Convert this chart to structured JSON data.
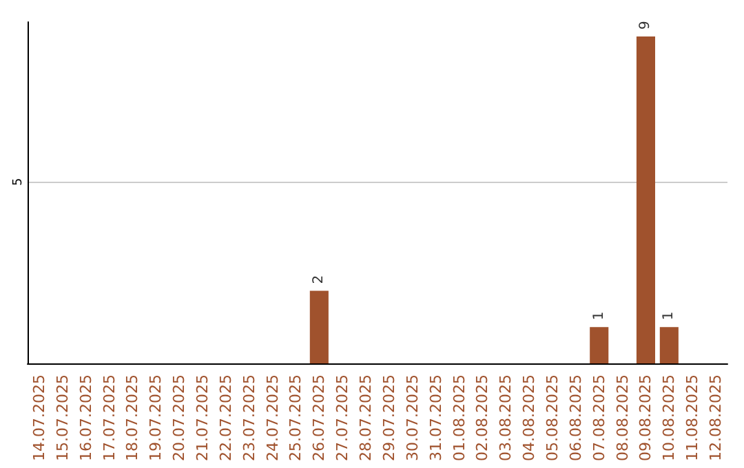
{
  "chart_data": {
    "type": "bar",
    "categories": [
      "14.07.2025",
      "15.07.2025",
      "16.07.2025",
      "17.07.2025",
      "18.07.2025",
      "19.07.2025",
      "20.07.2025",
      "21.07.2025",
      "22.07.2025",
      "23.07.2025",
      "24.07.2025",
      "25.07.2025",
      "26.07.2025",
      "27.07.2025",
      "28.07.2025",
      "29.07.2025",
      "30.07.2025",
      "31.07.2025",
      "01.08.2025",
      "02.08.2025",
      "03.08.2025",
      "04.08.2025",
      "05.08.2025",
      "06.08.2025",
      "07.08.2025",
      "08.08.2025",
      "09.08.2025",
      "10.08.2025",
      "11.08.2025",
      "12.08.2025"
    ],
    "values": [
      null,
      null,
      null,
      null,
      null,
      null,
      null,
      null,
      null,
      null,
      null,
      null,
      2,
      null,
      null,
      null,
      null,
      null,
      null,
      null,
      null,
      null,
      null,
      null,
      1,
      null,
      9,
      1,
      null,
      null
    ],
    "color": "#a0522d",
    "ylim": [
      0,
      9.4
    ],
    "yticks": [
      5
    ],
    "grid": "y",
    "data_labels": true
  }
}
